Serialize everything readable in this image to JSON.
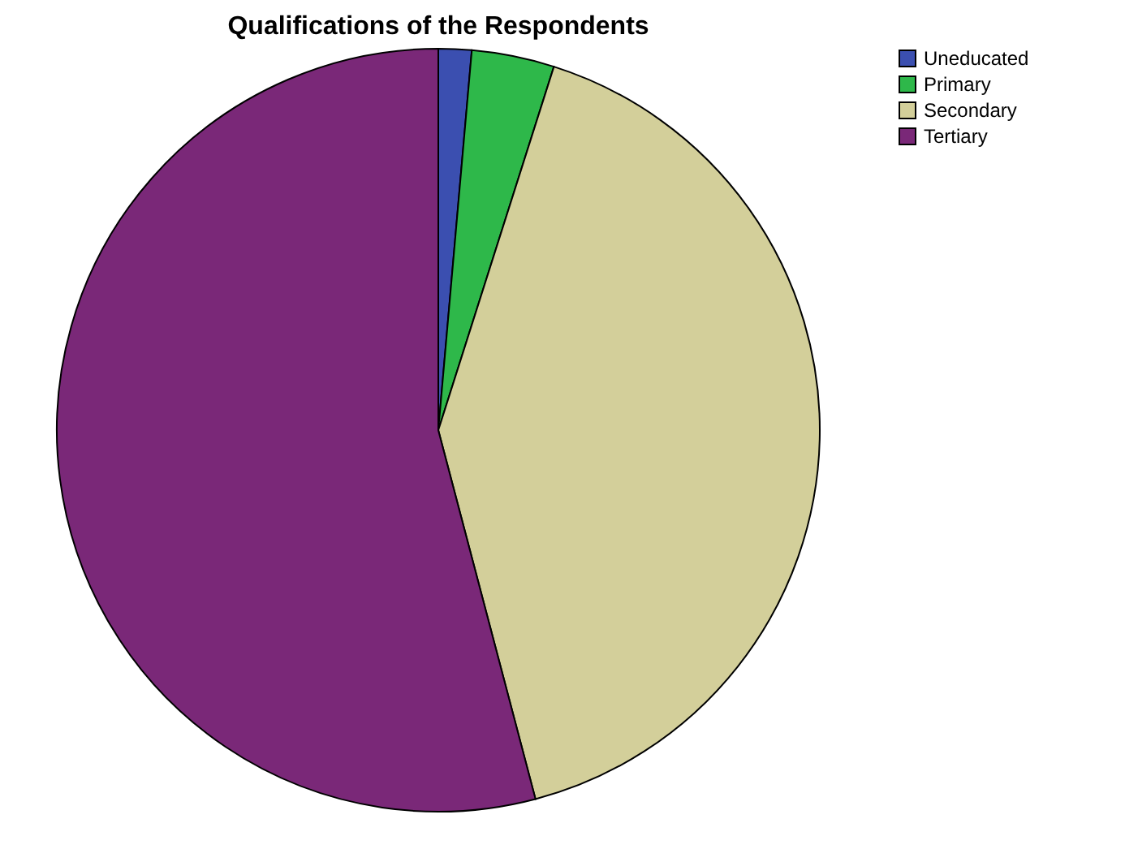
{
  "chart_data": {
    "type": "pie",
    "title": "Qualifications of the Respondents",
    "categories": [
      "Uneducated",
      "Primary",
      "Secondary",
      "Tertiary"
    ],
    "values": [
      1.4,
      3.5,
      41.0,
      54.1
    ],
    "colors": [
      "#3b4fb0",
      "#2eb84a",
      "#d3cf9a",
      "#7a2878"
    ],
    "legend": "top right"
  }
}
